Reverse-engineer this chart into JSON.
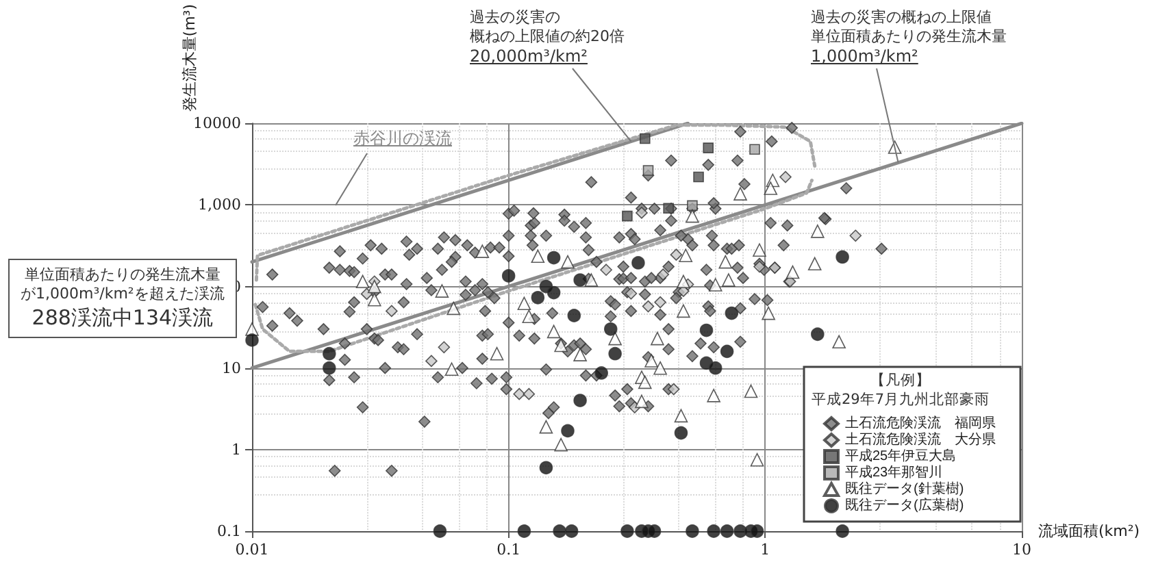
{
  "chart_data": {
    "type": "scatter",
    "xlabel": "流域面積(km²)",
    "ylabel": "発生流木量(m³)",
    "legend_title": "【凡例】平成29年7月九州北部豪雨",
    "log": "xy",
    "grid": true,
    "legend": "bottom right",
    "xlim": [
      0.01,
      10
    ],
    "ylim": [
      0.1,
      10000
    ],
    "xticks": [
      0.01,
      0.1,
      1,
      10
    ],
    "yticks": [
      0.1,
      1,
      10,
      100,
      {
        "value": 1000,
        "label": "1,000"
      },
      {
        "value": 10000,
        "label": "10000"
      }
    ],
    "annotations": [
      "過去の災害の概ねの上限値の約20倍",
      {
        "text": "20,000m³/km²",
        "x": 0.3,
        "y": 6000
      },
      "過去の災害の概ねの上限値単位面積あたりの発生流木量",
      {
        "text": "1,000m³/km²",
        "x": 3.3,
        "y": 3300
      },
      "赤谷川の渓流",
      "単位面積あたりの発生流木量が1,000m³/km²を超えた渓流",
      "288渓流中134渓流"
    ],
    "series": [
      {
        "name": "土石流危険渓流　福岡県",
        "marker": "diamond",
        "color": "#707070",
        "x": [
          0.012,
          0.011,
          0.012,
          0.014,
          0.015,
          0.019,
          0.022,
          0.02,
          0.022,
          0.024,
          0.025,
          0.027,
          0.024,
          0.025,
          0.023,
          0.023,
          0.025,
          0.02,
          0.027,
          0.028,
          0.029,
          0.032,
          0.03,
          0.03,
          0.031,
          0.033,
          0.035,
          0.04,
          0.041,
          0.044,
          0.039,
          0.037,
          0.039,
          0.04,
          0.033,
          0.044,
          0.048,
          0.05,
          0.053,
          0.047,
          0.056,
          0.053,
          0.055,
          0.062,
          0.062,
          0.06,
          0.069,
          0.074,
          0.068,
          0.068,
          0.066,
          0.075,
          0.079,
          0.079,
          0.083,
          0.086,
          0.081,
          0.085,
          0.092,
          0.079,
          0.074,
          0.083,
          0.088,
          0.098,
          0.098,
          0.1,
          0.105,
          0.1,
          0.1,
          0.1,
          0.11,
          0.126,
          0.126,
          0.122,
          0.124,
          0.122,
          0.126,
          0.125,
          0.14,
          0.14,
          0.143,
          0.15,
          0.148,
          0.16,
          0.17,
          0.18,
          0.19,
          0.2,
          0.2,
          0.22,
          0.26,
          0.27,
          0.165,
          0.165,
          0.18,
          0.2,
          0.2,
          0.205,
          0.22,
          0.205,
          0.25,
          0.25,
          0.26,
          0.27,
          0.28,
          0.27,
          0.33,
          0.37,
          0.43,
          0.52,
          0.64,
          0.3,
          0.31,
          0.39,
          0.43,
          0.5,
          0.52,
          0.47,
          0.62,
          0.63,
          0.79,
          0.71,
          0.74,
          1.05,
          1.22,
          1.72,
          1.18,
          2.84,
          0.28,
          0.3,
          0.34,
          0.39,
          0.42,
          0.36,
          0.59,
          0.61,
          0.82,
          0.78,
          0.95,
          1.09,
          0.99,
          1.24,
          0.29,
          0.34,
          0.3,
          0.39,
          0.42,
          0.46,
          0.45,
          0.6,
          0.61,
          0.8,
          0.91,
          1.02,
          0.35,
          0.42,
          0.52,
          0.56,
          0.63,
          0.8,
          0.3,
          0.29,
          0.35,
          0.42,
          0.021,
          0.035,
          0.8,
          1.27,
          1.06,
          0.43,
          0.78,
          0.6,
          0.35,
          2.07,
          1.7,
          0.21,
          0.3,
          0.63,
          0.83
        ],
        "values": [
          140,
          56,
          33,
          47,
          38,
          30,
          270,
          170,
          160,
          155,
          150,
          220,
          49,
          64,
          20,
          12.6,
          7.7,
          7.1,
          3.3,
          30,
          320,
          290,
          85,
          23,
          22,
          140,
          140,
          355,
          245,
          290,
          64,
          18,
          17,
          107,
          10,
          26,
          127,
          90,
          7.7,
          2.2,
          400,
          290,
          160,
          370,
          230,
          200,
          320,
          260,
          115,
          79,
          10,
          6.5,
          13,
          25,
          26,
          7.4,
          50,
          300,
          300,
          107,
          90,
          85,
          72,
          7.7,
          5.5,
          780,
          850,
          420,
          235,
          36,
          25,
          23,
          40,
          420,
          320,
          560,
          600,
          790,
          420,
          9.6,
          2.8,
          3.3,
          47,
          20,
          16,
          19,
          20,
          17,
          8.1,
          8.1,
          4.6,
          3.4,
          760,
          640,
          540,
          600,
          400,
          280,
          200,
          124,
          66,
          43,
          60,
          123,
          125,
          400,
          900,
          900,
          900,
          900,
          900,
          440,
          380,
          490,
          640,
          380,
          320,
          420,
          420,
          320,
          320,
          290,
          290,
          600,
          560,
          670,
          320,
          290,
          175,
          127,
          115,
          127,
          175,
          127,
          160,
          103,
          127,
          170,
          190,
          170,
          160,
          115,
          85,
          80,
          50,
          45,
          30,
          85,
          72,
          57,
          50,
          54,
          70,
          68,
          13.6,
          17,
          14,
          20,
          18,
          21,
          3.7,
          5.5,
          3.4,
          5.5,
          0.55,
          0.55,
          7900,
          8800,
          6000,
          3500,
          3500,
          3100,
          2300,
          1600,
          690,
          1900,
          1230,
          1050,
          1800
        ]
      },
      {
        "name": "土石流危険渓流　大分県",
        "marker": "diamond",
        "color": "#c8c8c8",
        "x": [
          0.035,
          0.05,
          0.056,
          0.11,
          0.028,
          0.03,
          0.24,
          0.3,
          0.35,
          0.39,
          0.48,
          0.5,
          0.4,
          0.95,
          1.09,
          1.25,
          2.25,
          0.33,
          0.45,
          1.2,
          0.31,
          0.44,
          0.12
        ],
        "values": [
          50,
          12.2,
          18,
          4.8,
          81,
          115,
          160,
          82,
          57,
          64,
          88,
          106,
          140,
          175,
          170,
          115,
          420,
          800,
          245,
          2200,
          3.3,
          5.5,
          4.8
        ]
      },
      {
        "name": "平成25年伊豆大島",
        "marker": "square",
        "color": "#555555",
        "x": [
          0.34,
          0.6,
          0.55,
          0.42,
          0.29
        ],
        "values": [
          6500,
          5000,
          2200,
          910,
          730
        ]
      },
      {
        "name": "平成23年那智川",
        "marker": "square",
        "color": "#a8a8a8",
        "x": [
          0.91,
          0.52,
          0.35
        ],
        "values": [
          4800,
          980,
          2650
        ]
      },
      {
        "name": "既往データ(針葉樹)",
        "marker": "triangle",
        "color": "#ffffff",
        "x": [
          0.01,
          0.027,
          0.03,
          0.03,
          0.055,
          0.061,
          0.079,
          0.13,
          0.17,
          0.21,
          0.09,
          0.06,
          0.115,
          0.12,
          0.15,
          0.16,
          0.19,
          0.14,
          0.16,
          0.26,
          0.49,
          0.7,
          0.72,
          0.48,
          0.64,
          1.6,
          1.56,
          1.28,
          1.03,
          0.38,
          0.36,
          0.48,
          1.94,
          0.33,
          0.34,
          0.33,
          0.63,
          0.88,
          0.47,
          0.95,
          0.93,
          0.39,
          3.2,
          0.8,
          1.07,
          1.05,
          0.52
        ],
        "values": [
          30,
          115,
          100,
          69,
          88,
          54,
          270,
          235,
          200,
          120,
          15,
          9.7,
          62,
          43,
          28,
          19,
          14.6,
          1.9,
          1.15,
          23,
          240,
          200,
          120,
          115,
          105,
          475,
          190,
          150,
          47,
          23,
          12.3,
          50,
          21,
          7.7,
          6.7,
          3.9,
          4.6,
          5.2,
          2.6,
          280,
          0.75,
          10,
          5100,
          1370,
          2000,
          1600,
          730
        ]
      },
      {
        "name": "既往データ(広葉樹)",
        "marker": "circle",
        "color": "#111111",
        "x": [
          0.01,
          0.02,
          0.02,
          0.1,
          0.15,
          0.14,
          0.13,
          0.15,
          0.19,
          0.18,
          0.25,
          0.26,
          0.23,
          0.19,
          0.17,
          0.32,
          0.74,
          0.59,
          0.71,
          0.59,
          0.64,
          2.0,
          1.6,
          0.47,
          0.14,
          0.054,
          0.115,
          0.158,
          0.176,
          0.29,
          0.33,
          0.35,
          0.37,
          0.52,
          0.63,
          0.71,
          0.8,
          0.88,
          0.93,
          2.0
        ],
        "values": [
          22,
          15,
          10,
          135,
          225,
          100,
          73,
          84,
          120,
          44,
          30,
          15,
          8.7,
          4,
          1.7,
          195,
          47,
          29,
          16,
          11.5,
          10,
          230,
          26,
          1.6,
          0.6,
          0.1,
          0.1,
          0.1,
          0.1,
          0.1,
          0.1,
          0.1,
          0.1,
          0.1,
          0.1,
          0.1,
          0.1,
          0.1,
          0.1,
          0.1
        ]
      },
      {
        "type": "line",
        "marker": "none",
        "line_style": "solid",
        "color": "#8a8a8a",
        "x": [
          0.01,
          10
        ],
        "values": [
          10,
          10000
        ]
      },
      {
        "type": "line",
        "marker": "none",
        "line_style": "solid",
        "color": "#8a8a8a",
        "x": [
          0.01,
          0.5
        ],
        "values": [
          200,
          10000
        ]
      },
      {
        "type": "line",
        "marker": "none",
        "line_style": "dotted",
        "color": "#aaaaaa",
        "x": [
          0.0104,
          0.0105,
          0.1,
          0.45,
          0.7,
          1.2,
          1.5,
          1.56
        ],
        "values": [
          120,
          240,
          2300,
          9500,
          9500,
          9000,
          6000,
          3000
        ]
      },
      {
        "type": "line",
        "marker": "none",
        "line_style": "dotted",
        "color": "#aaaaaa",
        "x": [
          0.0103,
          0.011,
          0.014,
          0.02,
          0.1,
          1.0,
          1.45,
          1.52
        ],
        "values": [
          60,
          30,
          16,
          16,
          88,
          900,
          1400,
          2000
        ]
      }
    ]
  }
}
